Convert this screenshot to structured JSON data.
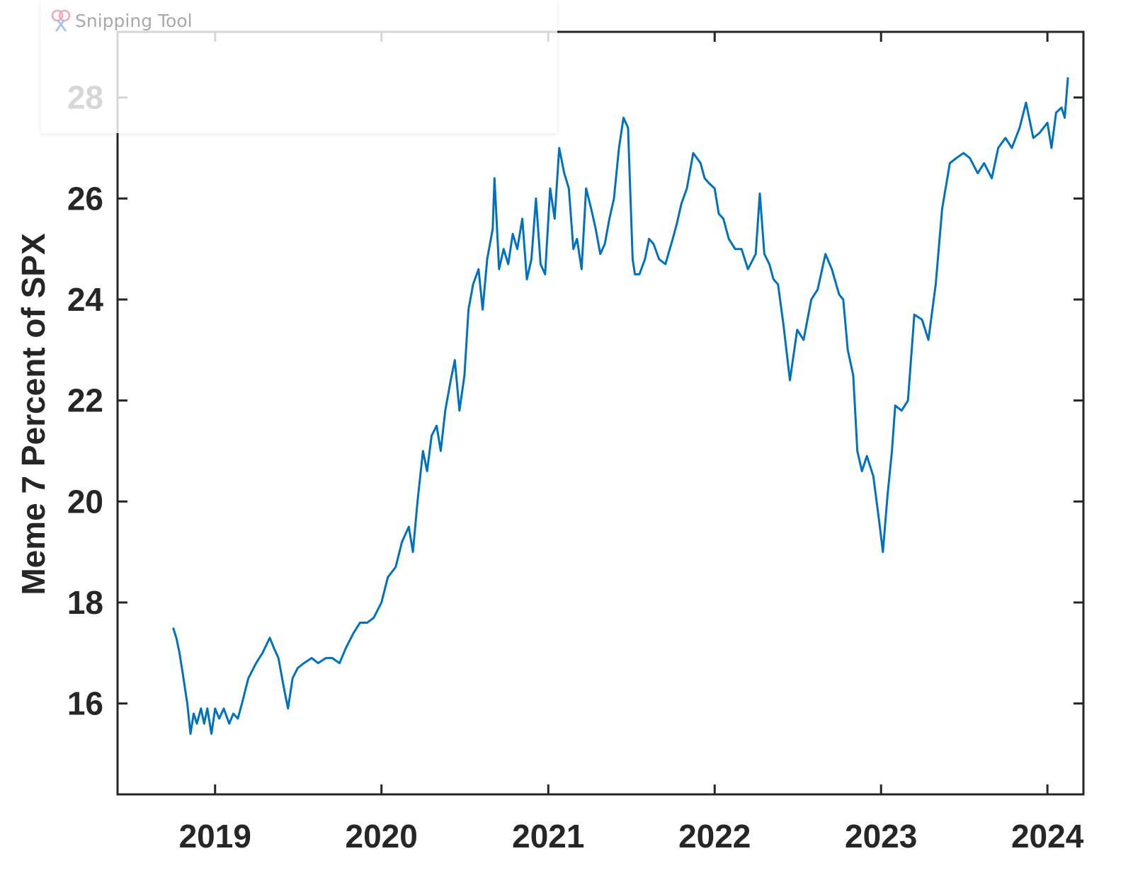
{
  "window": {
    "title": "Snipping Tool",
    "icon": "snipping-tool-icon"
  },
  "chart_data": {
    "type": "line",
    "title": "",
    "xlabel": "",
    "ylabel": "Meme 7 Percent of SPX",
    "xlim": [
      "2018-06-01",
      "2024-03-20"
    ],
    "ylim": [
      14.2,
      29.3
    ],
    "yticks": [
      16,
      18,
      20,
      22,
      24,
      26,
      28
    ],
    "xticks": [
      "2019-01-01",
      "2020-01-01",
      "2021-01-01",
      "2022-01-01",
      "2023-01-01",
      "2024-01-01"
    ],
    "xtick_labels": [
      "2019",
      "2020",
      "2021",
      "2022",
      "2023",
      "2024"
    ],
    "grid": false,
    "legend": "none",
    "line_color": "#0072BD",
    "series": [
      {
        "x": [
          "2018-10-01",
          "2018-10-08",
          "2018-10-15",
          "2018-10-22",
          "2018-11-01",
          "2018-11-08",
          "2018-11-15",
          "2018-11-22",
          "2018-12-01",
          "2018-12-08",
          "2018-12-15",
          "2018-12-24",
          "2019-01-01",
          "2019-01-10",
          "2019-01-20",
          "2019-02-01",
          "2019-02-10",
          "2019-02-20",
          "2019-03-01",
          "2019-03-15",
          "2019-04-01",
          "2019-04-15",
          "2019-05-01",
          "2019-05-10",
          "2019-05-20",
          "2019-06-01",
          "2019-06-10",
          "2019-06-20",
          "2019-07-01",
          "2019-07-15",
          "2019-08-01",
          "2019-08-15",
          "2019-09-01",
          "2019-09-15",
          "2019-10-01",
          "2019-10-15",
          "2019-11-01",
          "2019-11-15",
          "2019-12-01",
          "2019-12-15",
          "2020-01-01",
          "2020-01-15",
          "2020-02-01",
          "2020-02-15",
          "2020-03-01",
          "2020-03-10",
          "2020-03-20",
          "2020-04-01",
          "2020-04-10",
          "2020-04-20",
          "2020-05-01",
          "2020-05-10",
          "2020-05-20",
          "2020-06-01",
          "2020-06-10",
          "2020-06-20",
          "2020-07-01",
          "2020-07-10",
          "2020-07-20",
          "2020-08-01",
          "2020-08-10",
          "2020-08-20",
          "2020-09-01",
          "2020-09-05",
          "2020-09-15",
          "2020-09-25",
          "2020-10-05",
          "2020-10-15",
          "2020-10-25",
          "2020-11-05",
          "2020-11-15",
          "2020-11-25",
          "2020-12-05",
          "2020-12-15",
          "2020-12-25",
          "2021-01-05",
          "2021-01-15",
          "2021-01-25",
          "2021-02-05",
          "2021-02-15",
          "2021-02-25",
          "2021-03-05",
          "2021-03-15",
          "2021-03-25",
          "2021-04-05",
          "2021-04-15",
          "2021-04-25",
          "2021-05-05",
          "2021-05-15",
          "2021-05-25",
          "2021-06-05",
          "2021-06-15",
          "2021-06-25",
          "2021-07-05",
          "2021-07-10",
          "2021-07-20",
          "2021-08-01",
          "2021-08-10",
          "2021-08-20",
          "2021-09-01",
          "2021-09-15",
          "2021-10-01",
          "2021-10-10",
          "2021-10-20",
          "2021-11-01",
          "2021-11-15",
          "2021-12-01",
          "2021-12-10",
          "2021-12-20",
          "2022-01-01",
          "2022-01-10",
          "2022-01-20",
          "2022-02-01",
          "2022-02-15",
          "2022-03-01",
          "2022-03-15",
          "2022-04-01",
          "2022-04-10",
          "2022-04-20",
          "2022-05-01",
          "2022-05-10",
          "2022-05-20",
          "2022-06-01",
          "2022-06-15",
          "2022-07-01",
          "2022-07-15",
          "2022-08-01",
          "2022-08-15",
          "2022-09-01",
          "2022-09-15",
          "2022-10-01",
          "2022-10-10",
          "2022-10-20",
          "2022-11-01",
          "2022-11-10",
          "2022-11-20",
          "2022-12-01",
          "2022-12-15",
          "2022-12-28",
          "2023-01-05",
          "2023-01-15",
          "2023-01-25",
          "2023-02-01",
          "2023-02-15",
          "2023-03-01",
          "2023-03-15",
          "2023-04-01",
          "2023-04-15",
          "2023-05-01",
          "2023-05-15",
          "2023-06-01",
          "2023-06-15",
          "2023-07-01",
          "2023-07-15",
          "2023-08-01",
          "2023-08-15",
          "2023-09-01",
          "2023-09-15",
          "2023-10-01",
          "2023-10-15",
          "2023-11-01",
          "2023-11-15",
          "2023-12-01",
          "2023-12-15",
          "2024-01-01",
          "2024-01-10",
          "2024-01-20",
          "2024-02-01",
          "2024-02-08",
          "2024-02-15"
        ],
        "y": [
          17.5,
          17.3,
          17.0,
          16.6,
          16.0,
          15.4,
          15.8,
          15.6,
          15.9,
          15.6,
          15.9,
          15.4,
          15.9,
          15.7,
          15.9,
          15.6,
          15.8,
          15.7,
          16.0,
          16.5,
          16.8,
          17.0,
          17.3,
          17.1,
          16.9,
          16.3,
          15.9,
          16.5,
          16.7,
          16.8,
          16.9,
          16.8,
          16.9,
          16.9,
          16.8,
          17.1,
          17.4,
          17.6,
          17.6,
          17.7,
          18.0,
          18.5,
          18.7,
          19.2,
          19.5,
          19.0,
          20.0,
          21.0,
          20.6,
          21.3,
          21.5,
          21.0,
          21.8,
          22.4,
          22.8,
          21.8,
          22.5,
          23.8,
          24.3,
          24.6,
          23.8,
          24.8,
          25.4,
          26.4,
          24.6,
          25.0,
          24.7,
          25.3,
          25.0,
          25.6,
          24.4,
          24.8,
          26.0,
          24.7,
          24.5,
          26.2,
          25.6,
          27.0,
          26.5,
          26.2,
          25.0,
          25.2,
          24.6,
          26.2,
          25.8,
          25.4,
          24.9,
          25.1,
          25.6,
          26.0,
          27.0,
          27.6,
          27.4,
          24.8,
          24.5,
          24.5,
          24.8,
          25.2,
          25.1,
          24.8,
          24.7,
          25.2,
          25.5,
          25.9,
          26.2,
          26.9,
          26.7,
          26.4,
          26.3,
          26.2,
          25.7,
          25.6,
          25.2,
          25.0,
          25.0,
          24.6,
          24.9,
          26.1,
          24.9,
          24.7,
          24.4,
          24.3,
          23.5,
          22.4,
          23.4,
          23.2,
          24.0,
          24.2,
          24.9,
          24.6,
          24.1,
          24.0,
          23.0,
          22.5,
          21.0,
          20.6,
          20.9,
          20.5,
          19.6,
          19.0,
          20.1,
          21.0,
          21.9,
          21.8,
          22.0,
          23.7,
          23.6,
          23.2,
          24.3,
          25.8,
          26.7,
          26.8,
          26.9,
          26.8,
          26.5,
          26.7,
          26.4,
          27.0,
          27.2,
          27.0,
          27.4,
          27.9,
          27.2,
          27.3,
          27.5,
          27.0,
          27.7,
          27.8,
          27.6,
          28.4
        ]
      }
    ]
  }
}
